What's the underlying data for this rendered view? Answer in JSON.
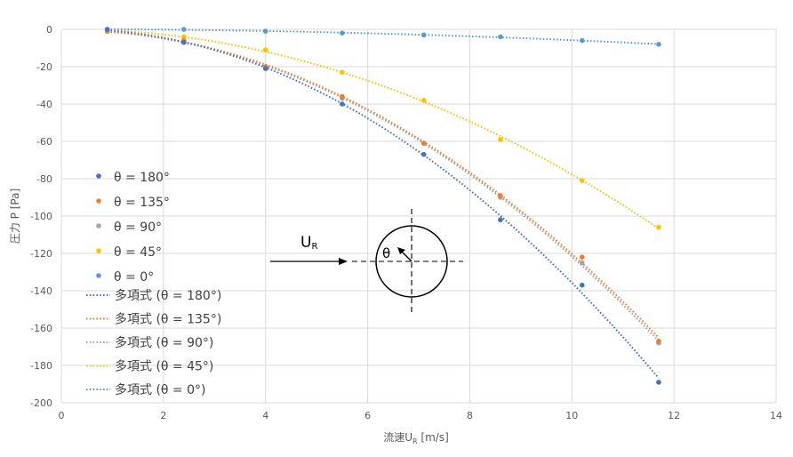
{
  "chart_data": {
    "type": "scatter",
    "xlabel": "流速U",
    "xlabel_sub": "R",
    "xlabel_unit": " [m/s]",
    "ylabel": "圧力 P [Pa]",
    "xlim": [
      0,
      14
    ],
    "ylim": [
      -200,
      0
    ],
    "xticks": [
      0,
      2,
      4,
      6,
      8,
      10,
      12,
      14
    ],
    "yticks": [
      0,
      -20,
      -40,
      -60,
      -80,
      -100,
      -120,
      -140,
      -160,
      -180,
      -200
    ],
    "grid": true,
    "legend_position": "left",
    "x": [
      0.9,
      2.4,
      4.0,
      5.5,
      7.1,
      8.6,
      10.2,
      11.7
    ],
    "series": [
      {
        "name": "θ = 180°",
        "color": "#4472C4",
        "values": [
          0,
          -7,
          -21,
          -40,
          -67,
          -102,
          -137,
          -189
        ]
      },
      {
        "name": "θ = 135°",
        "color": "#ED7D31",
        "values": [
          -1,
          -6,
          -20,
          -36,
          -61,
          -89,
          -122,
          -167
        ]
      },
      {
        "name": "θ = 90°",
        "color": "#A5A5A5",
        "values": [
          -1,
          -7,
          -20,
          -37,
          -61,
          -90,
          -125,
          -168
        ]
      },
      {
        "name": "θ = 45°",
        "color": "#FFC000",
        "values": [
          -1,
          -4,
          -11,
          -23,
          -38,
          -59,
          -81,
          -106
        ]
      },
      {
        "name": "θ = 0°",
        "color": "#5B9BD5",
        "values": [
          0,
          0,
          -1,
          -2,
          -3,
          -4,
          -6,
          -8
        ]
      }
    ],
    "trendlines": [
      {
        "name": "多項式 (θ = 180°)",
        "color": "#4472C4"
      },
      {
        "name": "多項式 (θ = 135°)",
        "color": "#ED7D31"
      },
      {
        "name": "多項式 (θ = 90°)",
        "color": "#A5A5A5"
      },
      {
        "name": "多項式 (θ = 45°)",
        "color": "#FFC000"
      },
      {
        "name": "多項式 (θ = 0°)",
        "color": "#5B9BD5"
      }
    ]
  },
  "inset": {
    "flow_label": "U",
    "flow_label_sub": "R",
    "angle_label": "θ"
  }
}
